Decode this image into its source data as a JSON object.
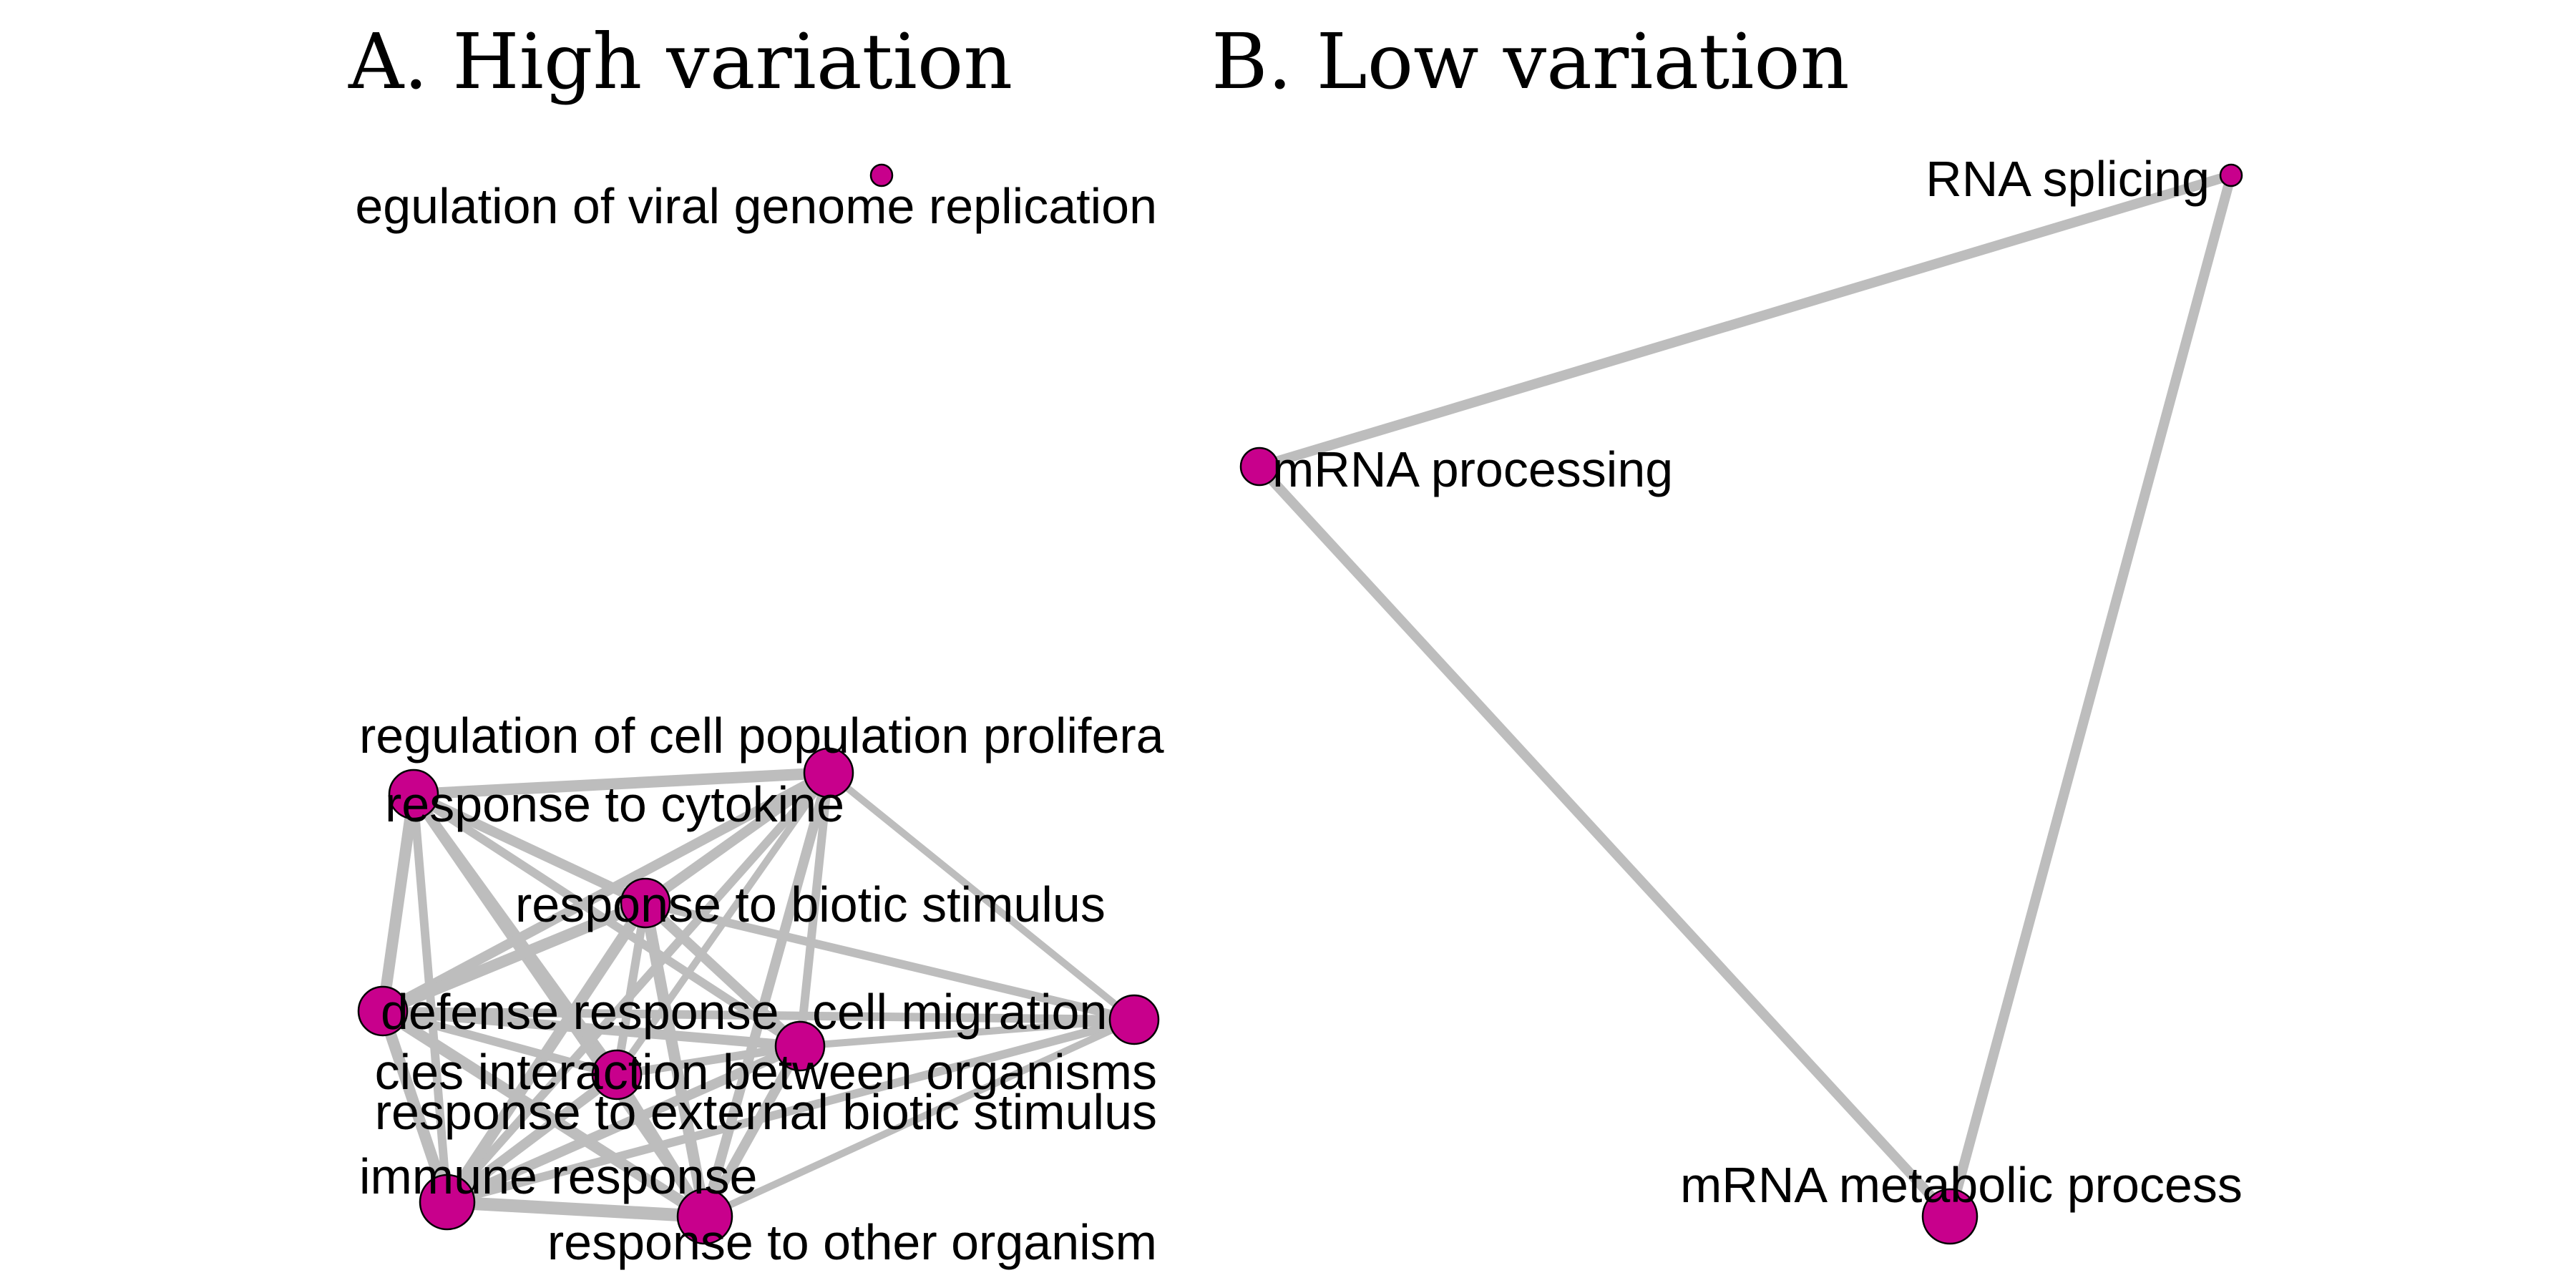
{
  "colors": {
    "node_fill": "#c8008c",
    "node_stroke": "#000000",
    "edge": "#bdbdbd",
    "background": "#ffffff"
  },
  "panels": [
    {
      "id": "A",
      "title": "A. High variation",
      "nodes": [
        {
          "id": "viral",
          "label": "regulation of viral genome replication"
        },
        {
          "id": "prolif",
          "label": "regulation of cell population proliferation"
        },
        {
          "id": "cytokine",
          "label": "response to cytokine"
        },
        {
          "id": "biotic",
          "label": "response to biotic stimulus"
        },
        {
          "id": "defense",
          "label": "defense response"
        },
        {
          "id": "migration",
          "label": "cell migration"
        },
        {
          "id": "interaction",
          "label": "multi-organism process / species interaction between organisms"
        },
        {
          "id": "external",
          "label": "response to external biotic stimulus"
        },
        {
          "id": "immune",
          "label": "immune response"
        },
        {
          "id": "other",
          "label": "response to other organism"
        }
      ],
      "edges": [
        [
          "cytokine",
          "prolif"
        ],
        [
          "cytokine",
          "biotic"
        ],
        [
          "cytokine",
          "defense"
        ],
        [
          "cytokine",
          "immune"
        ],
        [
          "cytokine",
          "other"
        ],
        [
          "cytokine",
          "interaction"
        ],
        [
          "cytokine",
          "external"
        ],
        [
          "prolif",
          "biotic"
        ],
        [
          "prolif",
          "defense"
        ],
        [
          "prolif",
          "immune"
        ],
        [
          "prolif",
          "other"
        ],
        [
          "prolif",
          "migration"
        ],
        [
          "prolif",
          "interaction"
        ],
        [
          "prolif",
          "external"
        ],
        [
          "biotic",
          "defense"
        ],
        [
          "biotic",
          "immune"
        ],
        [
          "biotic",
          "other"
        ],
        [
          "biotic",
          "interaction"
        ],
        [
          "biotic",
          "external"
        ],
        [
          "biotic",
          "migration"
        ],
        [
          "defense",
          "migration"
        ],
        [
          "defense",
          "immune"
        ],
        [
          "defense",
          "other"
        ],
        [
          "defense",
          "interaction"
        ],
        [
          "defense",
          "external"
        ],
        [
          "interaction",
          "immune"
        ],
        [
          "interaction",
          "other"
        ],
        [
          "interaction",
          "external"
        ],
        [
          "interaction",
          "migration"
        ],
        [
          "external",
          "immune"
        ],
        [
          "external",
          "other"
        ],
        [
          "immune",
          "other"
        ],
        [
          "immune",
          "migration"
        ],
        [
          "other",
          "migration"
        ]
      ]
    },
    {
      "id": "B",
      "title": "B. Low variation",
      "nodes": [
        {
          "id": "splicing",
          "label": "RNA splicing"
        },
        {
          "id": "processing",
          "label": "mRNA processing"
        },
        {
          "id": "metabolic",
          "label": "mRNA metabolic process"
        }
      ],
      "edges": [
        [
          "splicing",
          "processing"
        ],
        [
          "processing",
          "metabolic"
        ],
        [
          "splicing",
          "metabolic"
        ]
      ]
    }
  ],
  "display_labels": {
    "viral": "egulation of viral genome replication",
    "prolif": "regulation of cell population prolifera",
    "cytokine": "response to cytokine",
    "biotic": "response to biotic stimulus",
    "defense": "defense response",
    "migration": "cell migration",
    "interaction": "cies interaction between organisms",
    "external": "response to external biotic stimulus",
    "immune": "immune response",
    "other": "response to other organism",
    "splicing": "RNA splicing",
    "processing": "mRNA processing",
    "metabolic": "mRNA metabolic process"
  }
}
